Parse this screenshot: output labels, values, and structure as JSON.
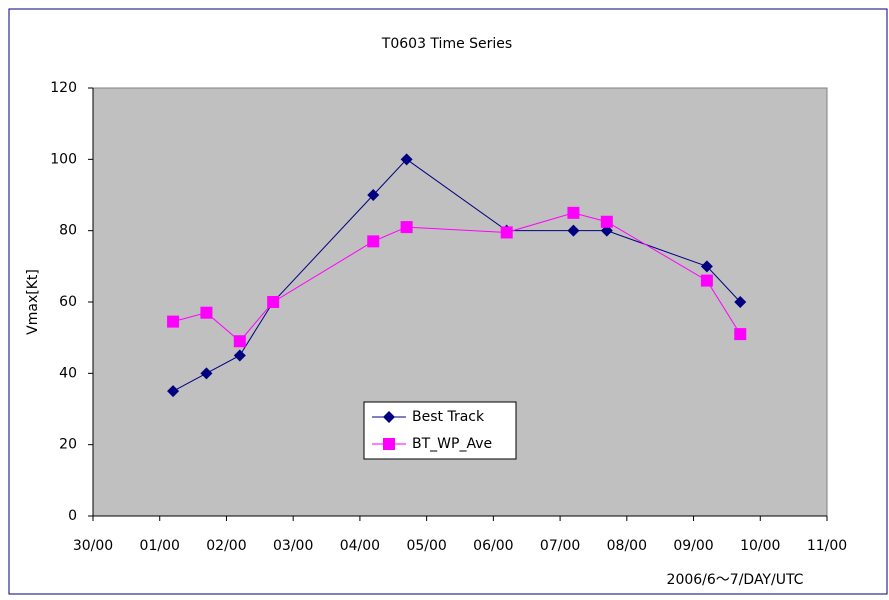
{
  "chart_data": {
    "type": "line",
    "title": "T0603 Time Series",
    "y_label": "Vmax[Kt]",
    "x_label": "2006/6～7/DAY/UTC",
    "x": [
      1.2,
      1.7,
      2.2,
      2.7,
      4.2,
      4.7,
      6.2,
      7.2,
      7.7,
      9.2,
      9.7
    ],
    "series": [
      {
        "name": "Best Track",
        "color": "#000080",
        "marker": "diamond",
        "values": [
          35,
          40,
          45,
          60,
          90,
          100,
          80,
          80,
          80,
          70,
          60
        ]
      },
      {
        "name": "BT_WP_Ave",
        "color": "#ff00ff",
        "marker": "square",
        "values": [
          54.5,
          57,
          49,
          60,
          77,
          81,
          79.5,
          85,
          82.5,
          66,
          51
        ]
      }
    ],
    "xlim": [
      0,
      11
    ],
    "xticks": [
      {
        "value": 0,
        "label": "30/00"
      },
      {
        "value": 1,
        "label": "01/00"
      },
      {
        "value": 2,
        "label": "02/00"
      },
      {
        "value": 3,
        "label": "03/00"
      },
      {
        "value": 4,
        "label": "04/00"
      },
      {
        "value": 5,
        "label": "05/00"
      },
      {
        "value": 6,
        "label": "06/00"
      },
      {
        "value": 7,
        "label": "07/00"
      },
      {
        "value": 8,
        "label": "08/00"
      },
      {
        "value": 9,
        "label": "09/00"
      },
      {
        "value": 10,
        "label": "10/00"
      },
      {
        "value": 11,
        "label": "11/00"
      }
    ],
    "ylim": [
      0,
      120
    ],
    "yticks": [
      0,
      20,
      40,
      60,
      80,
      100,
      120
    ],
    "grid": false,
    "legend": "center"
  }
}
